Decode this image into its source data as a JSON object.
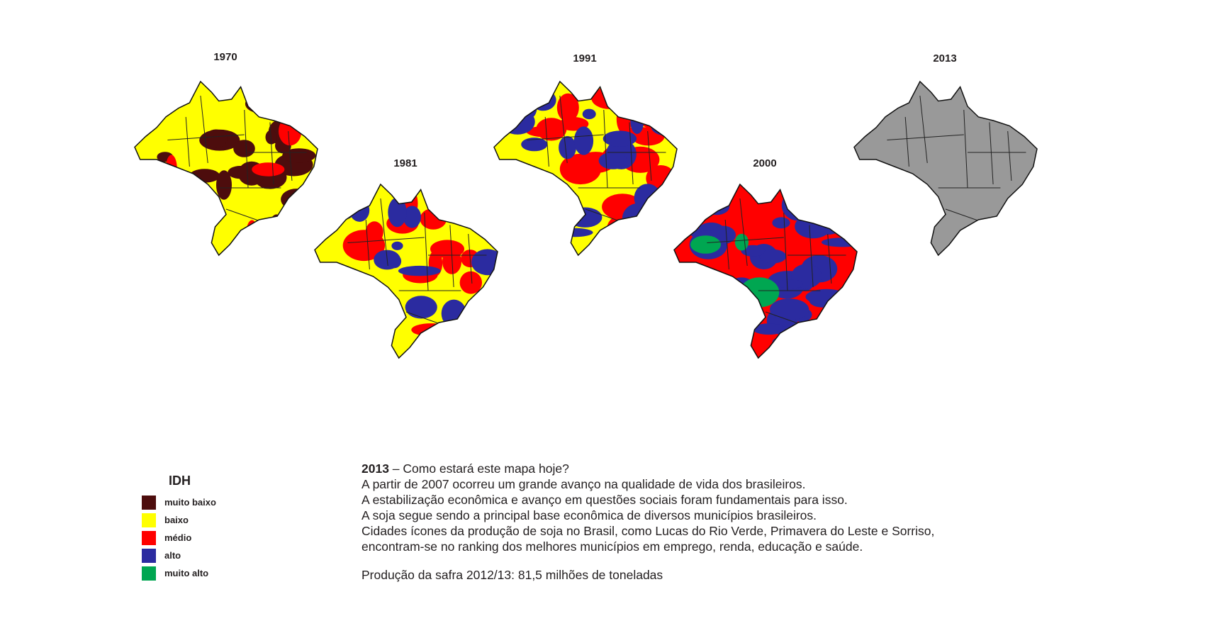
{
  "maps": [
    {
      "year": "1970",
      "fill": {
        "base": "#ffff00",
        "patches": [
          [
            "#4d0d0d",
            0.45
          ],
          [
            "#ff0000",
            0.08
          ]
        ]
      }
    },
    {
      "year": "1981",
      "fill": {
        "base": "#ffff00",
        "patches": [
          [
            "#ff0000",
            0.35
          ],
          [
            "#2b2ba0",
            0.25
          ]
        ]
      }
    },
    {
      "year": "1991",
      "fill": {
        "base": "#ffff00",
        "patches": [
          [
            "#ff0000",
            0.45
          ],
          [
            "#2b2ba0",
            0.35
          ]
        ]
      }
    },
    {
      "year": "2000",
      "fill": {
        "base": "#ff0000",
        "patches": [
          [
            "#2b2ba0",
            0.55
          ],
          [
            "#00a651",
            0.06
          ]
        ]
      }
    },
    {
      "year": "2013",
      "fill": {
        "base": "#999999",
        "patches": []
      }
    }
  ],
  "legend": {
    "title": "IDH",
    "items": [
      {
        "label": "muito baixo",
        "color": "#4d0d0d"
      },
      {
        "label": "baixo",
        "color": "#ffff00"
      },
      {
        "label": "médio",
        "color": "#ff0000"
      },
      {
        "label": "alto",
        "color": "#2b2ba0"
      },
      {
        "label": "muito alto",
        "color": "#00a651"
      }
    ]
  },
  "caption": {
    "heading_year": "2013",
    "heading_text": " – Como estará este mapa hoje?",
    "lines": [
      "A partir de 2007 ocorreu um grande avanço na qualidade de vida dos brasileiros.",
      "A estabilização econômica e avanço em questões sociais foram fundamentais para isso.",
      "A soja segue sendo a principal base econômica de diversos municípios brasileiros.",
      "Cidades ícones da produção de soja no Brasil,  como Lucas do Rio Verde, Primavera do Leste e Sorriso,",
      "encontram-se no ranking dos melhores municípios em emprego, renda, educação e saúde."
    ],
    "production": "Produção da safra 2012/13: 81,5 milhões de toneladas"
  }
}
